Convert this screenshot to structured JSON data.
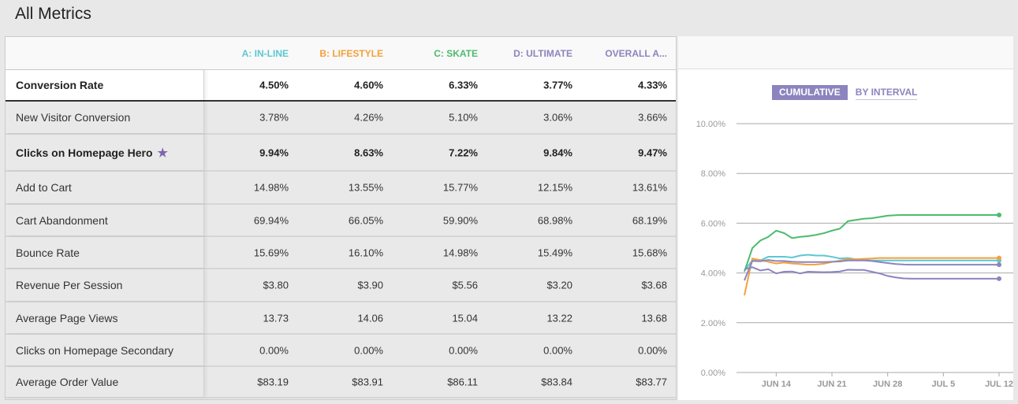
{
  "title": "All Metrics",
  "columns": [
    {
      "label": "A: IN-LINE",
      "color": "#5bc8d0"
    },
    {
      "label": "B: LIFESTYLE",
      "color": "#f5a03c"
    },
    {
      "label": "C: SKATE",
      "color": "#4cbb6c"
    },
    {
      "label": "D: ULTIMATE",
      "color": "#8c84bf"
    },
    {
      "label": "OVERALL A...",
      "color": "#8c84bf"
    }
  ],
  "rows": [
    {
      "label": "Conversion Rate",
      "values": [
        "4.50%",
        "4.60%",
        "6.33%",
        "3.77%",
        "4.33%"
      ]
    },
    {
      "label": "New Visitor Conversion",
      "values": [
        "3.78%",
        "4.26%",
        "5.10%",
        "3.06%",
        "3.66%"
      ]
    },
    {
      "label": "Clicks on Homepage Hero",
      "values": [
        "9.94%",
        "8.63%",
        "7.22%",
        "9.84%",
        "9.47%"
      ]
    },
    {
      "label": "Add to Cart",
      "values": [
        "14.98%",
        "13.55%",
        "15.77%",
        "12.15%",
        "13.61%"
      ]
    },
    {
      "label": "Cart Abandonment",
      "values": [
        "69.94%",
        "66.05%",
        "59.90%",
        "68.98%",
        "68.19%"
      ]
    },
    {
      "label": "Bounce Rate",
      "values": [
        "15.69%",
        "16.10%",
        "14.98%",
        "15.49%",
        "15.68%"
      ]
    },
    {
      "label": "Revenue Per Session",
      "values": [
        "$3.80",
        "$3.90",
        "$5.56",
        "$3.20",
        "$3.68"
      ]
    },
    {
      "label": "Average Page Views",
      "values": [
        "13.73",
        "14.06",
        "15.04",
        "13.22",
        "13.68"
      ]
    },
    {
      "label": "Clicks on Homepage Secondary",
      "values": [
        "0.00%",
        "0.00%",
        "0.00%",
        "0.00%",
        "0.00%"
      ]
    },
    {
      "label": "Average Order Value",
      "values": [
        "$83.19",
        "$83.91",
        "$86.11",
        "$83.84",
        "$83.77"
      ]
    }
  ],
  "toggle": {
    "cumulative": "CUMULATIVE",
    "by_interval": "BY INTERVAL"
  },
  "chart_data": {
    "type": "line",
    "x_start_day": 0,
    "x_ticks": [
      {
        "day": 4,
        "label": "JUN 14"
      },
      {
        "day": 11,
        "label": "JUN 21"
      },
      {
        "day": 18,
        "label": "JUN 28"
      },
      {
        "day": 25,
        "label": "JUL 5"
      },
      {
        "day": 32,
        "label": "JUL 12"
      }
    ],
    "y_ticks": [
      0,
      2,
      4,
      6,
      8,
      10
    ],
    "y_tick_labels": [
      "0.00%",
      "2.00%",
      "4.00%",
      "6.00%",
      "8.00%",
      "10.00%"
    ],
    "ylim": [
      0,
      10
    ],
    "xlim": [
      0,
      32
    ],
    "series": [
      {
        "name": "A: IN-LINE",
        "color": "#5bc8d0",
        "values": [
          4.1,
          4.5,
          4.5,
          4.65,
          4.65,
          4.65,
          4.62,
          4.7,
          4.73,
          4.7,
          4.7,
          4.65,
          4.58,
          4.6,
          4.55,
          4.52,
          4.5,
          4.5,
          4.5,
          4.5,
          4.5,
          4.5,
          4.5,
          4.5,
          4.5,
          4.5,
          4.5,
          4.5,
          4.5,
          4.5,
          4.5,
          4.5,
          4.5
        ]
      },
      {
        "name": "B: LIFESTYLE",
        "color": "#f5a03c",
        "values": [
          3.1,
          4.58,
          4.52,
          4.45,
          4.38,
          4.42,
          4.38,
          4.36,
          4.33,
          4.34,
          4.37,
          4.44,
          4.5,
          4.55,
          4.55,
          4.57,
          4.58,
          4.6,
          4.6,
          4.6,
          4.6,
          4.6,
          4.6,
          4.6,
          4.6,
          4.6,
          4.6,
          4.6,
          4.6,
          4.6,
          4.6,
          4.6,
          4.6
        ]
      },
      {
        "name": "C: SKATE",
        "color": "#4cbb6c",
        "values": [
          4.05,
          5.0,
          5.3,
          5.45,
          5.7,
          5.6,
          5.4,
          5.45,
          5.48,
          5.53,
          5.6,
          5.7,
          5.78,
          6.08,
          6.13,
          6.18,
          6.2,
          6.25,
          6.3,
          6.32,
          6.33,
          6.33,
          6.33,
          6.33,
          6.33,
          6.33,
          6.33,
          6.33,
          6.33,
          6.33,
          6.33,
          6.33,
          6.33
        ]
      },
      {
        "name": "D: ULTIMATE",
        "color": "#8c84bf",
        "values": [
          4.15,
          4.23,
          4.1,
          4.15,
          3.98,
          4.05,
          4.06,
          3.98,
          4.05,
          4.04,
          4.03,
          4.04,
          4.06,
          4.13,
          4.12,
          4.12,
          4.05,
          3.98,
          3.88,
          3.82,
          3.78,
          3.77,
          3.77,
          3.77,
          3.77,
          3.77,
          3.77,
          3.77,
          3.77,
          3.77,
          3.77,
          3.77,
          3.77
        ]
      },
      {
        "name": "OVERALL",
        "color": "#8c84bf",
        "values": [
          3.7,
          4.48,
          4.47,
          4.52,
          4.48,
          4.48,
          4.45,
          4.44,
          4.44,
          4.44,
          4.44,
          4.45,
          4.46,
          4.5,
          4.5,
          4.5,
          4.48,
          4.44,
          4.4,
          4.36,
          4.34,
          4.33,
          4.33,
          4.33,
          4.33,
          4.33,
          4.33,
          4.33,
          4.33,
          4.33,
          4.33,
          4.33,
          4.33
        ]
      }
    ]
  }
}
